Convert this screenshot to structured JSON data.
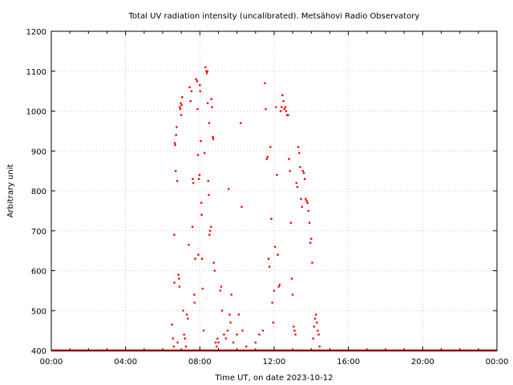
{
  "chart_data": {
    "type": "scatter",
    "title": "Total UV radiation intensity (uncalibrated). Metsähovi Radio Observatory",
    "xlabel": "Time UT, on date 2023-10-12",
    "ylabel": "Arbitrary unit",
    "xlim": [
      0,
      24
    ],
    "ylim": [
      400,
      1200
    ],
    "x_ticks": [
      0,
      4,
      8,
      12,
      16,
      20,
      24
    ],
    "x_tick_labels": [
      "00:00",
      "04:00",
      "08:00",
      "12:00",
      "16:00",
      "20:00",
      "00:00"
    ],
    "y_ticks": [
      400,
      500,
      600,
      700,
      800,
      900,
      1000,
      1100,
      1200
    ],
    "y_tick_labels": [
      "400",
      "500",
      "600",
      "700",
      "800",
      "900",
      "1000",
      "1100",
      "1200"
    ],
    "grid": true,
    "marker_color": "#ff0000",
    "series": [
      {
        "baseline_x_range": [
          0,
          24
        ],
        "baseline_y": 400,
        "points": [
          [
            6.5,
            465
          ],
          [
            6.55,
            430
          ],
          [
            6.6,
            410
          ],
          [
            6.62,
            690
          ],
          [
            6.63,
            570
          ],
          [
            6.65,
            920
          ],
          [
            6.67,
            915
          ],
          [
            6.7,
            850
          ],
          [
            6.72,
            940
          ],
          [
            6.75,
            960
          ],
          [
            6.78,
            825
          ],
          [
            6.8,
            420
          ],
          [
            6.85,
            590
          ],
          [
            6.88,
            580
          ],
          [
            6.9,
            560
          ],
          [
            6.92,
            1010
          ],
          [
            6.95,
            1005
          ],
          [
            6.97,
            1020
          ],
          [
            7.0,
            990
          ],
          [
            7.02,
            1015
          ],
          [
            7.05,
            1035
          ],
          [
            7.1,
            500
          ],
          [
            7.15,
            440
          ],
          [
            7.2,
            430
          ],
          [
            7.25,
            410
          ],
          [
            7.3,
            490
          ],
          [
            7.35,
            480
          ],
          [
            7.4,
            665
          ],
          [
            7.45,
            1060
          ],
          [
            7.5,
            1025
          ],
          [
            7.55,
            1050
          ],
          [
            7.6,
            710
          ],
          [
            7.62,
            830
          ],
          [
            7.65,
            820
          ],
          [
            7.7,
            540
          ],
          [
            7.72,
            520
          ],
          [
            7.75,
            630
          ],
          [
            7.8,
            1080
          ],
          [
            7.85,
            1075
          ],
          [
            7.88,
            1005
          ],
          [
            7.9,
            890
          ],
          [
            7.92,
            640
          ],
          [
            7.95,
            830
          ],
          [
            7.98,
            840
          ],
          [
            8.0,
            1065
          ],
          [
            8.02,
            1050
          ],
          [
            8.05,
            925
          ],
          [
            8.08,
            770
          ],
          [
            8.1,
            740
          ],
          [
            8.12,
            630
          ],
          [
            8.15,
            555
          ],
          [
            8.2,
            450
          ],
          [
            8.25,
            895
          ],
          [
            8.3,
            1110
          ],
          [
            8.35,
            1100
          ],
          [
            8.38,
            1095
          ],
          [
            8.4,
            1100
          ],
          [
            8.42,
            1020
          ],
          [
            8.45,
            825
          ],
          [
            8.48,
            790
          ],
          [
            8.5,
            970
          ],
          [
            8.52,
            690
          ],
          [
            8.55,
            700
          ],
          [
            8.6,
            710
          ],
          [
            8.62,
            1030
          ],
          [
            8.65,
            1010
          ],
          [
            8.7,
            935
          ],
          [
            8.72,
            930
          ],
          [
            8.75,
            620
          ],
          [
            8.8,
            600
          ],
          [
            8.85,
            420
          ],
          [
            8.9,
            410
          ],
          [
            8.95,
            430
          ],
          [
            9.0,
            420
          ],
          [
            9.1,
            550
          ],
          [
            9.15,
            560
          ],
          [
            9.2,
            500
          ],
          [
            9.3,
            440
          ],
          [
            9.4,
            430
          ],
          [
            9.5,
            450
          ],
          [
            9.55,
            805
          ],
          [
            9.6,
            490
          ],
          [
            9.65,
            470
          ],
          [
            9.7,
            540
          ],
          [
            9.8,
            420
          ],
          [
            10.0,
            440
          ],
          [
            10.1,
            490
          ],
          [
            10.2,
            970
          ],
          [
            10.25,
            760
          ],
          [
            10.3,
            450
          ],
          [
            10.5,
            410
          ],
          [
            11.0,
            420
          ],
          [
            11.2,
            440
          ],
          [
            11.4,
            450
          ],
          [
            11.5,
            1070
          ],
          [
            11.55,
            1005
          ],
          [
            11.6,
            880
          ],
          [
            11.65,
            885
          ],
          [
            11.7,
            630
          ],
          [
            11.75,
            610
          ],
          [
            11.8,
            910
          ],
          [
            11.85,
            730
          ],
          [
            11.9,
            520
          ],
          [
            11.95,
            470
          ],
          [
            12.0,
            550
          ],
          [
            12.05,
            660
          ],
          [
            12.1,
            1010
          ],
          [
            12.15,
            840
          ],
          [
            12.2,
            640
          ],
          [
            12.25,
            560
          ],
          [
            12.3,
            565
          ],
          [
            12.35,
            1000
          ],
          [
            12.4,
            1010
          ],
          [
            12.45,
            1040
          ],
          [
            12.5,
            1025
          ],
          [
            12.55,
            1005
          ],
          [
            12.6,
            1010
          ],
          [
            12.65,
            1000
          ],
          [
            12.7,
            990
          ],
          [
            12.75,
            990
          ],
          [
            12.8,
            880
          ],
          [
            12.85,
            850
          ],
          [
            12.9,
            720
          ],
          [
            12.95,
            580
          ],
          [
            13.0,
            540
          ],
          [
            13.05,
            460
          ],
          [
            13.1,
            450
          ],
          [
            13.15,
            440
          ],
          [
            13.2,
            820
          ],
          [
            13.25,
            810
          ],
          [
            13.3,
            910
          ],
          [
            13.35,
            895
          ],
          [
            13.4,
            860
          ],
          [
            13.45,
            780
          ],
          [
            13.5,
            760
          ],
          [
            13.55,
            850
          ],
          [
            13.6,
            845
          ],
          [
            13.65,
            830
          ],
          [
            13.7,
            780
          ],
          [
            13.75,
            775
          ],
          [
            13.8,
            770
          ],
          [
            13.85,
            750
          ],
          [
            13.9,
            720
          ],
          [
            13.95,
            670
          ],
          [
            14.0,
            680
          ],
          [
            14.05,
            620
          ],
          [
            14.1,
            430
          ],
          [
            14.15,
            460
          ],
          [
            14.2,
            480
          ],
          [
            14.25,
            490
          ],
          [
            14.3,
            470
          ],
          [
            14.35,
            450
          ],
          [
            14.4,
            440
          ],
          [
            14.45,
            410
          ]
        ]
      }
    ]
  }
}
